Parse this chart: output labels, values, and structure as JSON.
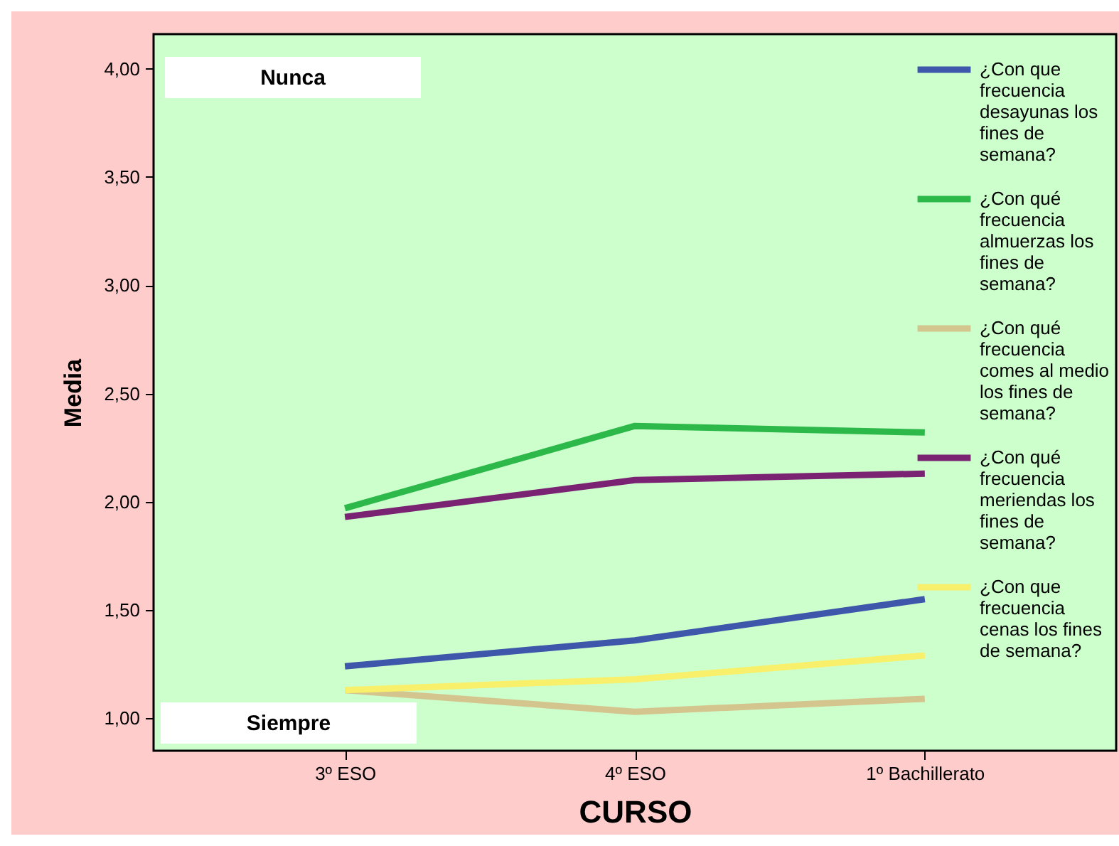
{
  "chart_data": {
    "type": "line",
    "xlabel": "CURSO",
    "ylabel": "Media",
    "categories": [
      "3º ESO",
      "4º ESO",
      "1º Bachillerato"
    ],
    "series": [
      {
        "name": "¿Con que frecuencia desayunas los fines de semana?",
        "color": "#3f57aa",
        "values": [
          1.24,
          1.36,
          1.55
        ]
      },
      {
        "name": "¿Con qué frecuencia almuerzas los fines de semana?",
        "color": "#2db84a",
        "values": [
          1.97,
          2.35,
          2.32
        ]
      },
      {
        "name": "¿Con qué frecuencia comes al medio los fines de semana?",
        "color": "#d4c58f",
        "values": [
          1.13,
          1.03,
          1.09
        ]
      },
      {
        "name": "¿Con qué frecuencia meriendas los fines de semana?",
        "color": "#7a2372",
        "values": [
          1.93,
          2.1,
          2.13
        ]
      },
      {
        "name": "¿Con que frecuencia cenas los fines de semana?",
        "color": "#f8f06a",
        "values": [
          1.13,
          1.18,
          1.29
        ]
      }
    ],
    "ylim": [
      0.85,
      4.16
    ],
    "yticks": [
      {
        "value": 1,
        "label": "1,00"
      },
      {
        "value": 1.5,
        "label": "1,50"
      },
      {
        "value": 2,
        "label": "2,00"
      },
      {
        "value": 2.5,
        "label": "2,50"
      },
      {
        "value": 3,
        "label": "3,00"
      },
      {
        "value": 3.5,
        "label": "3,50"
      },
      {
        "value": 4,
        "label": "4,00"
      }
    ],
    "annotations": [
      "Nunca",
      "Siempre"
    ],
    "legend": "top right",
    "grid": false,
    "marker": "none",
    "line_style": "solid"
  }
}
